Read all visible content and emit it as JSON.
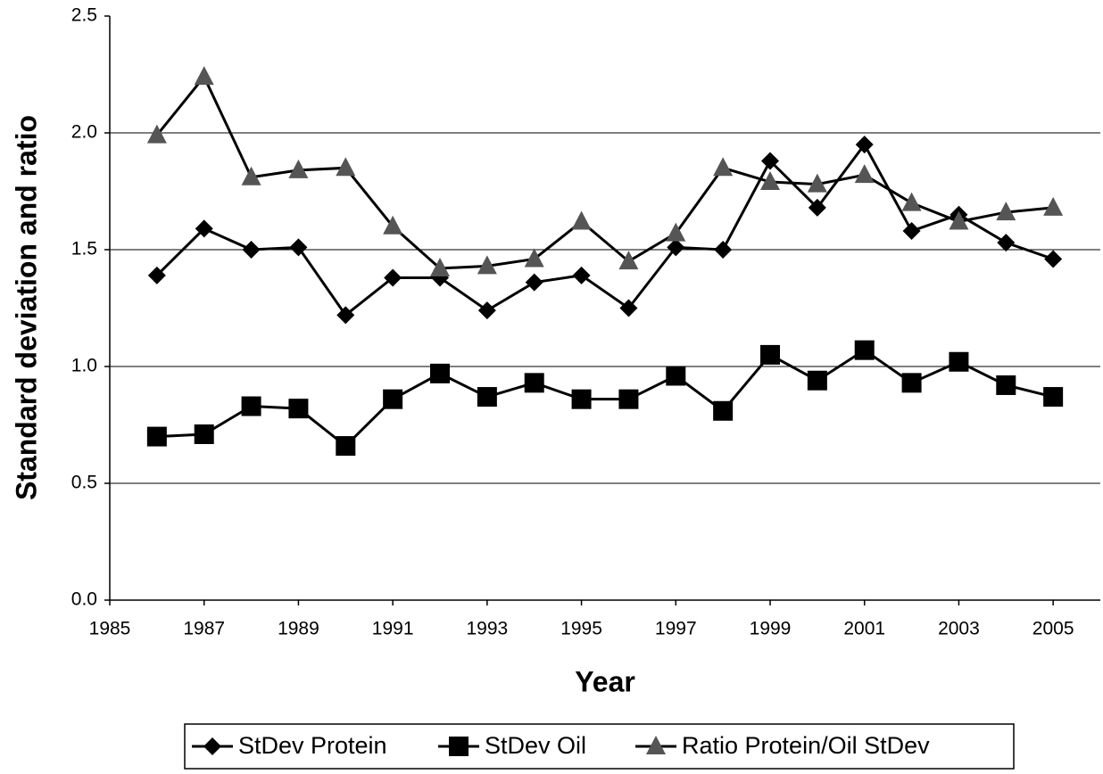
{
  "chart_data": {
    "type": "line",
    "x_label": "Year",
    "y_label": "Standard deviation and ratio",
    "x": [
      1986,
      1987,
      1988,
      1989,
      1990,
      1991,
      1992,
      1993,
      1994,
      1995,
      1996,
      1997,
      1998,
      1999,
      2000,
      2001,
      2002,
      2003,
      2004,
      2005
    ],
    "series": [
      {
        "name": "StDev Protein",
        "color": "#000000",
        "marker": "diamond",
        "marker_color": "#000000",
        "values": [
          1.39,
          1.59,
          1.5,
          1.51,
          1.22,
          1.38,
          1.38,
          1.24,
          1.36,
          1.39,
          1.25,
          1.51,
          1.5,
          1.88,
          1.68,
          1.95,
          1.58,
          1.65,
          1.53,
          1.46
        ]
      },
      {
        "name": "StDev Oil",
        "color": "#000000",
        "marker": "square",
        "marker_color": "#000000",
        "values": [
          0.7,
          0.71,
          0.83,
          0.82,
          0.66,
          0.86,
          0.97,
          0.87,
          0.93,
          0.86,
          0.86,
          0.96,
          0.81,
          1.05,
          0.94,
          1.07,
          0.93,
          1.02,
          0.92,
          0.87
        ]
      },
      {
        "name": "Ratio Protein/Oil StDev",
        "color": "#000000",
        "marker": "triangle",
        "marker_color": "#555555",
        "values": [
          1.99,
          2.24,
          1.81,
          1.84,
          1.85,
          1.6,
          1.42,
          1.43,
          1.46,
          1.62,
          1.45,
          1.57,
          1.85,
          1.79,
          1.78,
          1.82,
          1.7,
          1.62,
          1.66,
          1.68
        ]
      }
    ],
    "xlim": [
      1985,
      2006
    ],
    "xticks": [
      1985,
      1987,
      1989,
      1991,
      1993,
      1995,
      1997,
      1999,
      2001,
      2003,
      2005
    ],
    "ylim": [
      0,
      2.5
    ],
    "yticks": [
      {
        "value": 0,
        "label": "0.0"
      },
      0.5,
      {
        "value": 1,
        "label": "1.0"
      },
      1.5,
      {
        "value": 2,
        "label": "2.0"
      },
      2.5
    ],
    "grid": true,
    "legend": "bottom"
  }
}
